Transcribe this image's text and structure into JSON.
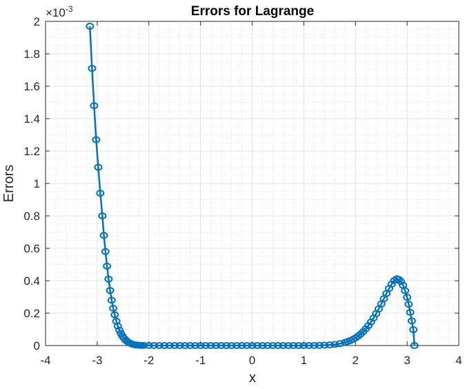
{
  "chart_data": {
    "type": "line",
    "title": "Errors for Lagrange",
    "xlabel": "x",
    "ylabel": "Errors",
    "exponent_label": "×10",
    "exponent_power": "-3",
    "xlim": [
      -4,
      4
    ],
    "ylim": [
      0,
      0.002
    ],
    "xticks": [
      -4,
      -3,
      -2,
      -1,
      0,
      1,
      2,
      3,
      4
    ],
    "xtick_labels": [
      "-4",
      "-3",
      "-2",
      "-1",
      "0",
      "1",
      "2",
      "3",
      "4"
    ],
    "yticks": [
      0,
      0.0002,
      0.0004,
      0.0006,
      0.0008,
      0.001,
      0.0012,
      0.0014,
      0.0016,
      0.0018,
      0.002
    ],
    "ytick_labels": [
      "0",
      "0.2",
      "0.4",
      "0.6",
      "0.8",
      "1",
      "1.2",
      "1.4",
      "1.6",
      "1.8",
      "2"
    ],
    "grid": true,
    "minor_grid": true,
    "series_color": "#0072BD",
    "marker": "circle",
    "series": [
      {
        "x": [
          -3.1416,
          -3.1,
          -3.06,
          -3.02,
          -2.98,
          -2.94,
          -2.9,
          -2.87,
          -2.84,
          -2.81,
          -2.78,
          -2.75,
          -2.72,
          -2.69,
          -2.66,
          -2.63,
          -2.6,
          -2.57,
          -2.54,
          -2.51,
          -2.48,
          -2.45,
          -2.42,
          -2.39,
          -2.36,
          -2.33,
          -2.3,
          -2.27,
          -2.24,
          -2.21,
          -2.18,
          -2.15,
          -2.1,
          -2.0,
          -1.9,
          -1.8,
          -1.7,
          -1.6,
          -1.5,
          -1.4,
          -1.3,
          -1.2,
          -1.1,
          -1.0,
          -0.9,
          -0.8,
          -0.7,
          -0.6,
          -0.5,
          -0.4,
          -0.3,
          -0.2,
          -0.1,
          0.0,
          0.1,
          0.2,
          0.3,
          0.4,
          0.5,
          0.6,
          0.7,
          0.8,
          0.9,
          1.0,
          1.1,
          1.2,
          1.3,
          1.4,
          1.5,
          1.6,
          1.7,
          1.8,
          1.85,
          1.9,
          1.95,
          2.0,
          2.05,
          2.1,
          2.15,
          2.2,
          2.25,
          2.3,
          2.35,
          2.4,
          2.45,
          2.5,
          2.55,
          2.6,
          2.65,
          2.7,
          2.75,
          2.8,
          2.84,
          2.88,
          2.92,
          2.96,
          3.0,
          3.03,
          3.06,
          3.09,
          3.12,
          3.1416
        ],
        "y": [
          0.00197,
          0.00171,
          0.00148,
          0.00127,
          0.0011,
          0.00094,
          0.0008,
          0.00068,
          0.00058,
          0.00049,
          0.00041,
          0.00034,
          0.00028,
          0.00023,
          0.00019,
          0.00015,
          0.00012,
          9.5e-05,
          7.5e-05,
          5.8e-05,
          4.5e-05,
          3.4e-05,
          2.6e-05,
          1.9e-05,
          1.4e-05,
          1e-05,
          7e-06,
          5e-06,
          3.5e-06,
          2.5e-06,
          1.8e-06,
          1.2e-06,
          8e-07,
          4e-07,
          2e-07,
          1e-07,
          5e-08,
          3e-08,
          2e-08,
          1e-08,
          0.0,
          0.0,
          0.0,
          0.0,
          0.0,
          0.0,
          0.0,
          0.0,
          0.0,
          0.0,
          0.0,
          0.0,
          0.0,
          0.0,
          0.0,
          0.0,
          0.0,
          0.0,
          0.0,
          0.0,
          0.0,
          0.0,
          0.0,
          0.0,
          2e-07,
          5e-07,
          1e-06,
          2e-06,
          4e-06,
          7e-06,
          1.2e-05,
          2e-05,
          2.5e-05,
          3.1e-05,
          3.8e-05,
          4.7e-05,
          5.8e-05,
          7.1e-05,
          8.6e-05,
          0.000103,
          0.000123,
          0.000145,
          0.00017,
          0.000197,
          0.000226,
          0.000257,
          0.000289,
          0.000321,
          0.000352,
          0.000379,
          0.000401,
          0.000412,
          0.000408,
          0.000395,
          0.000372,
          0.000339,
          0.000298,
          0.000255,
          0.000205,
          0.000152,
          9.8e-05,
          0.0
        ]
      }
    ]
  }
}
